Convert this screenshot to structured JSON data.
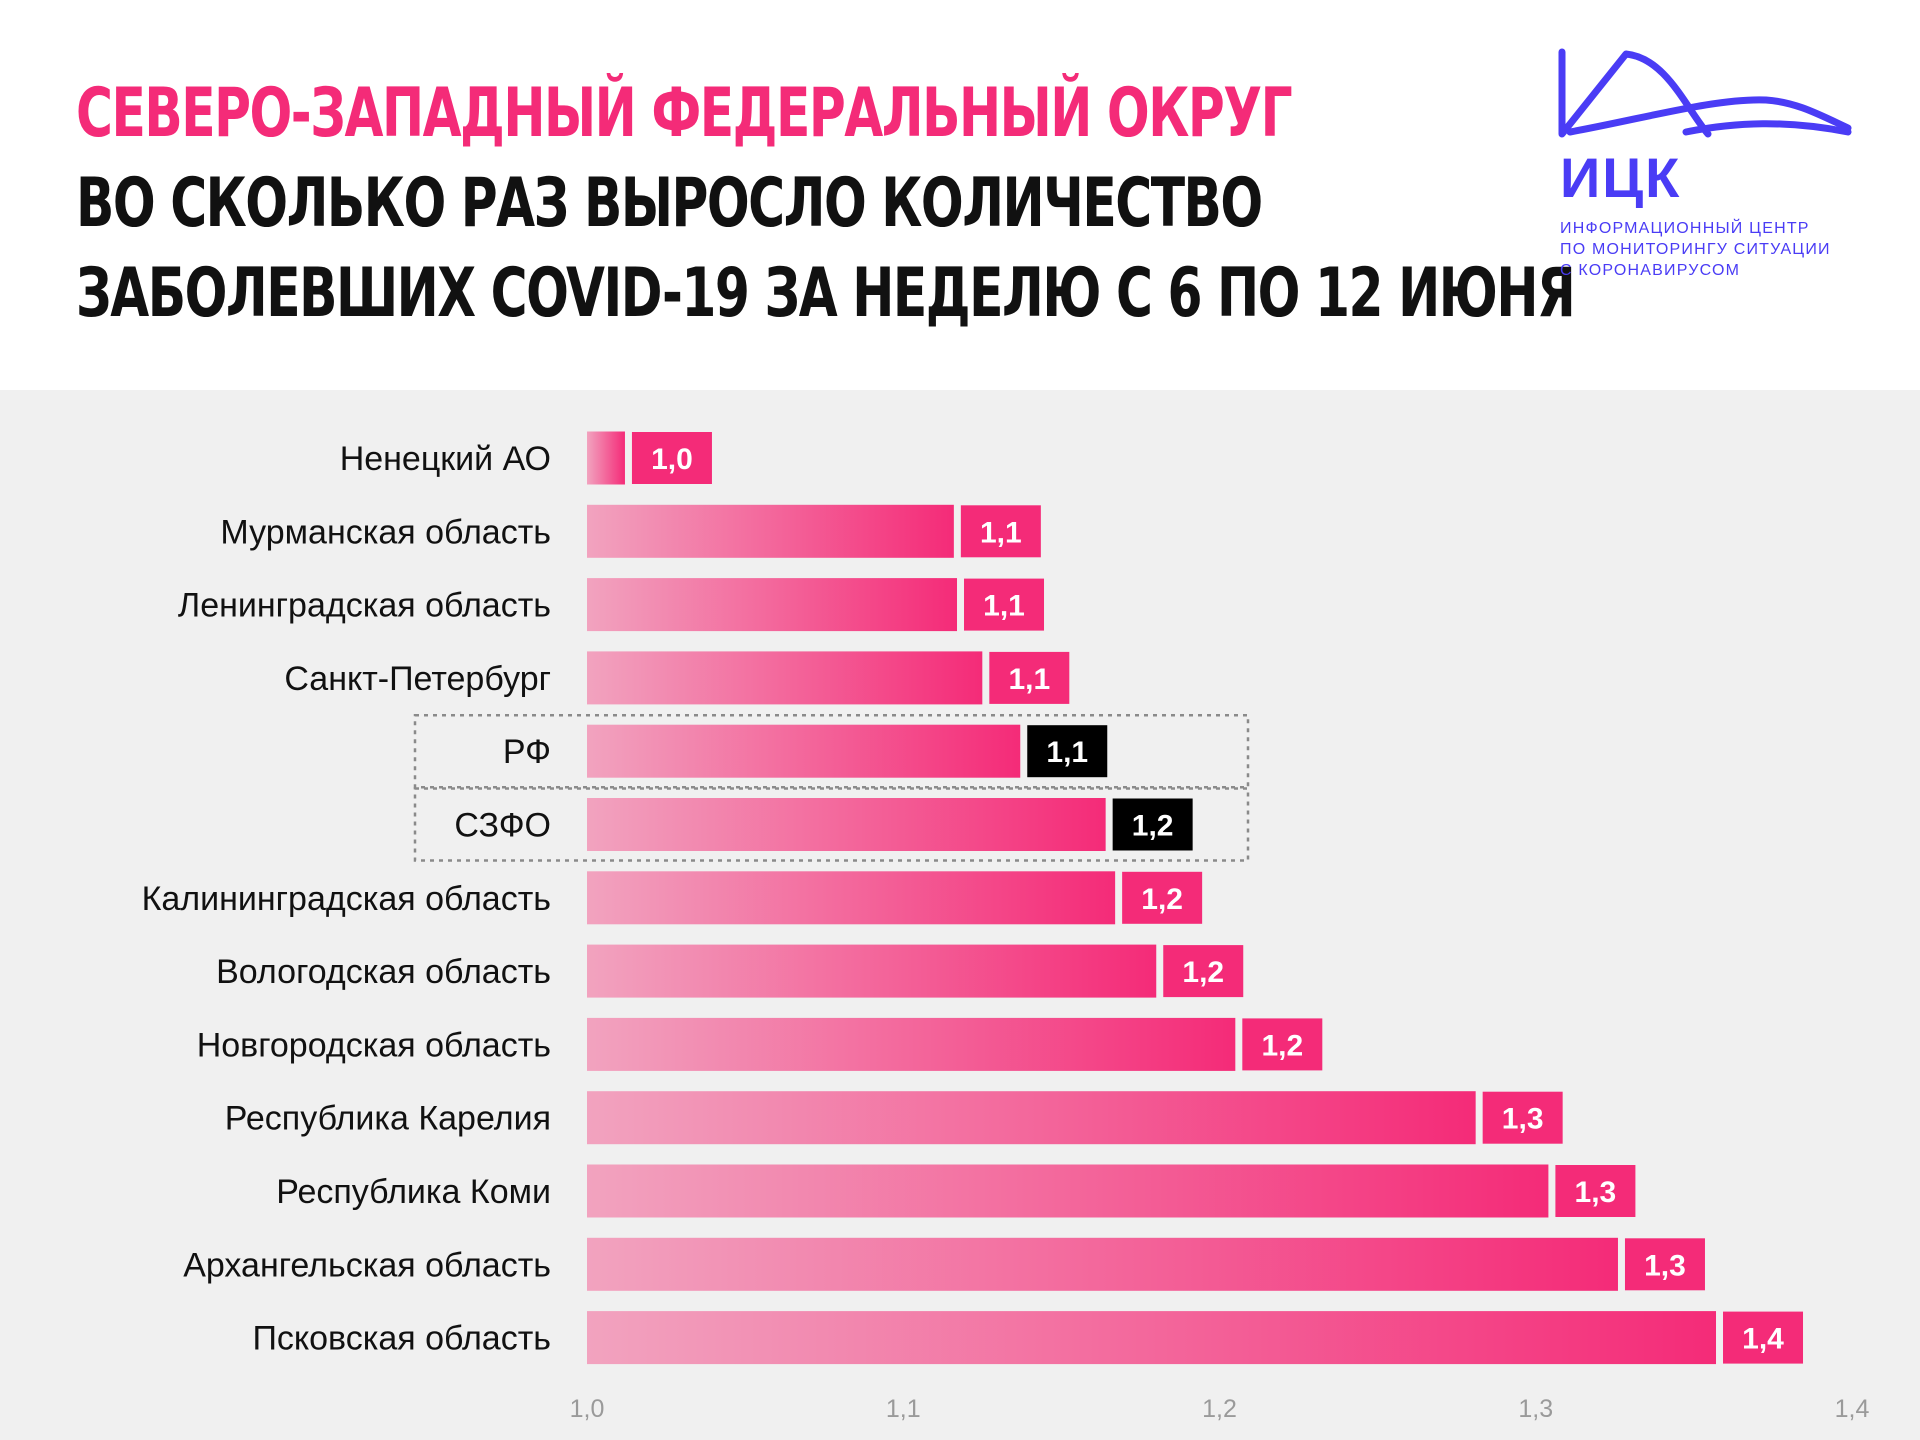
{
  "header": {
    "title_line1": "СЕВЕРО-ЗАПАДНЫЙ ФЕДЕРАЛЬНЫЙ ОКРУГ",
    "title_line2": "ВО СКОЛЬКО РАЗ ВЫРОСЛО КОЛИЧЕСТВО",
    "title_line3": "ЗАБОЛЕВШИХ COVID-19 ЗА НЕДЕЛЮ С 6 ПО 12 ИЮНЯ"
  },
  "logo": {
    "name": "ИЦК",
    "subtitle_lines": [
      "ИНФОРМАЦИОННЫЙ ЦЕНТР",
      "ПО МОНИТОРИНГУ СИТУАЦИИ",
      "С КОРОНАВИРУСОМ"
    ]
  },
  "colors": {
    "accent": "#f42b78",
    "bar_start": "#f2a3bf",
    "bar_end": "#f42b78",
    "highlight_label": "#000000",
    "logo": "#4a3cf5",
    "chart_bg": "#f0f0f0"
  },
  "chart_data": {
    "type": "bar",
    "orientation": "horizontal",
    "title": "ВО СКОЛЬКО РАЗ ВЫРОСЛО КОЛИЧЕСТВО ЗАБОЛЕВШИХ COVID-19 ЗА НЕДЕЛЮ С 6 ПО 12 ИЮНЯ",
    "xlabel": "",
    "ylabel": "",
    "xlim": [
      1.0,
      1.4
    ],
    "x_ticks": [
      1.0,
      1.1,
      1.2,
      1.3,
      1.4
    ],
    "x_tick_labels": [
      "1,0",
      "1,1",
      "1,2",
      "1,3",
      "1,4"
    ],
    "grid": false,
    "categories": [
      "Ненецкий АО",
      "Мурманская область",
      "Ленинградская область",
      "Санкт-Петербург",
      "РФ",
      "СЗФО",
      "Калининградская область",
      "Вологодская область",
      "Новгородская область",
      "Республика Карелия",
      "Республика Коми",
      "Архангельская область",
      "Псковская область"
    ],
    "values": [
      1.012,
      1.116,
      1.117,
      1.125,
      1.137,
      1.164,
      1.167,
      1.18,
      1.205,
      1.281,
      1.304,
      1.326,
      1.357
    ],
    "value_labels": [
      "1,0",
      "1,1",
      "1,1",
      "1,1",
      "1,1",
      "1,2",
      "1,2",
      "1,2",
      "1,2",
      "1,3",
      "1,3",
      "1,3",
      "1,4"
    ],
    "highlighted": [
      "РФ",
      "СЗФО"
    ]
  }
}
